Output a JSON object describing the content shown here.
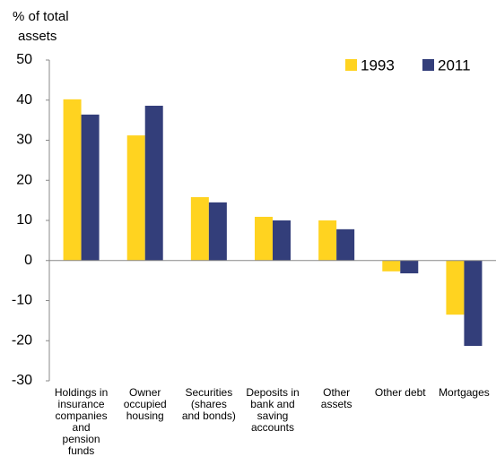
{
  "chart_data": {
    "type": "bar",
    "y_label": [
      "% of total",
      "assets"
    ],
    "categories": [
      [
        "Holdings in",
        "insurance",
        "companies",
        "and",
        "pension",
        "funds"
      ],
      [
        "Owner",
        "occupied",
        "housing"
      ],
      [
        "Securities",
        "(shares",
        "and bonds)"
      ],
      [
        "Deposits in",
        "bank and",
        "saving",
        "accounts"
      ],
      [
        "Other",
        "assets"
      ],
      [
        "Other debt"
      ],
      [
        "Mortgages"
      ]
    ],
    "series": [
      {
        "name": "1993",
        "color": "#ffd320",
        "values": [
          40.2,
          31.2,
          15.8,
          10.9,
          10,
          -2.7,
          -13.5
        ]
      },
      {
        "name": "2011",
        "color": "#333e7a",
        "values": [
          36.4,
          38.6,
          14.5,
          10,
          7.8,
          -3.2,
          -21.3
        ]
      }
    ],
    "ylim": [
      -30,
      50
    ],
    "yticks": [
      -30,
      -20,
      -10,
      0,
      10,
      20,
      30,
      40,
      50
    ],
    "legend": "top-right"
  }
}
